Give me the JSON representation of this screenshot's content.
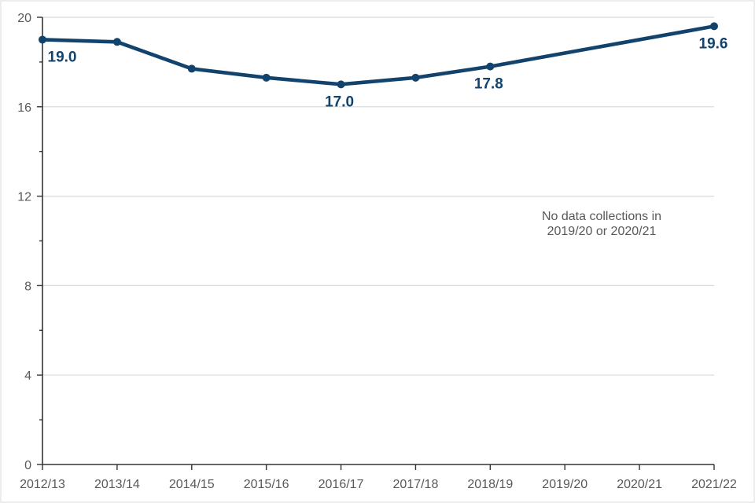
{
  "figure": {
    "background": "#ffffff",
    "border_color": "#ededed"
  },
  "chart_data": {
    "type": "line",
    "title": "",
    "xlabel": "",
    "ylabel": "",
    "categories": [
      "2012/13",
      "2013/14",
      "2014/15",
      "2015/16",
      "2016/17",
      "2017/18",
      "2018/19",
      "2019/20",
      "2020/21",
      "2021/22"
    ],
    "series": [
      {
        "name": "value",
        "color": "#12436d",
        "values": [
          19.0,
          18.9,
          17.7,
          17.3,
          17.0,
          17.3,
          17.8,
          null,
          null,
          19.6
        ]
      }
    ],
    "data_labels": [
      {
        "index": 0,
        "text": "19.0"
      },
      {
        "index": 4,
        "text": "17.0"
      },
      {
        "index": 6,
        "text": "17.8"
      },
      {
        "index": 9,
        "text": "19.6"
      }
    ],
    "annotation": {
      "line1": "No data collections in",
      "line2": "2019/20 or 2020/21",
      "color": "#595959"
    },
    "ylim": [
      0,
      20
    ],
    "y_major_ticks": [
      0,
      4,
      8,
      12,
      16,
      20
    ],
    "y_minor_ticks": [
      2,
      6,
      10,
      14,
      18
    ],
    "grid": {
      "horizontal_major": true,
      "color": "#d9d9d9"
    },
    "axis_color": "#333333",
    "tick_label_color": "#595959",
    "legend_position": "none"
  }
}
